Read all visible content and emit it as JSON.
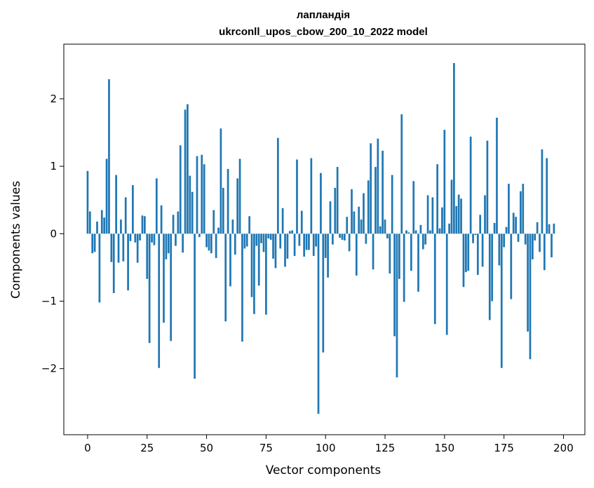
{
  "chart_data": {
    "type": "bar",
    "title_line1": "лапландія",
    "title_line2": "ukrconll_upos_cbow_200_10_2022 model",
    "xlabel": "Vector components",
    "ylabel": "Components values",
    "xlim": [
      -10,
      209
    ],
    "ylim": [
      -2.98,
      2.81
    ],
    "xticks": [
      0,
      25,
      50,
      75,
      100,
      125,
      150,
      175,
      200
    ],
    "yticks": [
      -2,
      -1,
      0,
      1,
      2
    ],
    "ytick_labels": [
      "−2",
      "−1",
      "0",
      "1",
      "2"
    ],
    "grid": false,
    "bar_color": "#1f77b4",
    "values": [
      0.93,
      0.33,
      -0.29,
      -0.27,
      0.18,
      -1.02,
      0.35,
      0.24,
      1.11,
      2.29,
      -0.42,
      -0.88,
      0.87,
      -0.43,
      0.21,
      -0.41,
      0.54,
      -0.84,
      -0.11,
      0.72,
      -0.13,
      -0.43,
      -0.1,
      0.27,
      0.26,
      -0.67,
      -1.62,
      -0.13,
      -0.17,
      0.82,
      -1.99,
      0.42,
      -1.32,
      -0.38,
      -0.29,
      -1.59,
      0.28,
      -0.18,
      0.33,
      1.31,
      -0.28,
      1.84,
      1.92,
      0.86,
      0.62,
      -2.15,
      1.15,
      -0.05,
      1.17,
      1.03,
      -0.2,
      -0.25,
      -0.29,
      0.35,
      -0.36,
      0.09,
      1.56,
      0.68,
      -1.3,
      0.96,
      -0.78,
      0.21,
      -0.31,
      0.82,
      1.11,
      -1.6,
      -0.22,
      -0.19,
      0.26,
      -0.94,
      -1.19,
      -0.18,
      -0.77,
      -0.14,
      -0.27,
      -1.2,
      -0.07,
      -0.09,
      -0.37,
      -0.51,
      1.42,
      -0.22,
      0.38,
      -0.49,
      -0.37,
      0.04,
      0.05,
      -0.33,
      1.1,
      -0.18,
      0.34,
      -0.34,
      -0.24,
      -0.24,
      1.12,
      -0.33,
      -0.19,
      -2.67,
      0.9,
      -1.76,
      -0.36,
      -0.65,
      0.48,
      -0.16,
      0.68,
      0.99,
      -0.06,
      -0.09,
      -0.1,
      0.25,
      -0.26,
      0.66,
      0.33,
      -0.62,
      0.4,
      0.21,
      0.6,
      -0.15,
      0.79,
      1.34,
      -0.53,
      0.99,
      1.41,
      0.11,
      1.23,
      0.21,
      -0.07,
      -0.59,
      0.87,
      -1.52,
      -2.13,
      -0.67,
      1.77,
      -1.01,
      0.05,
      0.02,
      -0.55,
      0.78,
      0.05,
      -0.86,
      0.13,
      -0.23,
      -0.16,
      0.57,
      0.05,
      0.54,
      -1.34,
      1.03,
      0.08,
      0.39,
      1.54,
      -1.5,
      0.15,
      0.8,
      2.53,
      0.41,
      0.58,
      0.52,
      -0.79,
      -0.57,
      -0.55,
      1.44,
      -0.14,
      -0.02,
      -0.61,
      0.28,
      -0.49,
      0.57,
      1.38,
      -1.28,
      -1.0,
      0.16,
      1.72,
      -0.47,
      -1.99,
      -0.2,
      0.1,
      0.74,
      -0.97,
      0.31,
      0.25,
      -0.12,
      0.63,
      0.74,
      -0.16,
      -1.45,
      -1.86,
      -0.38,
      -0.1,
      0.17,
      -0.27,
      1.25,
      -0.54,
      1.12,
      0.14,
      -0.35,
      0.15
    ]
  }
}
